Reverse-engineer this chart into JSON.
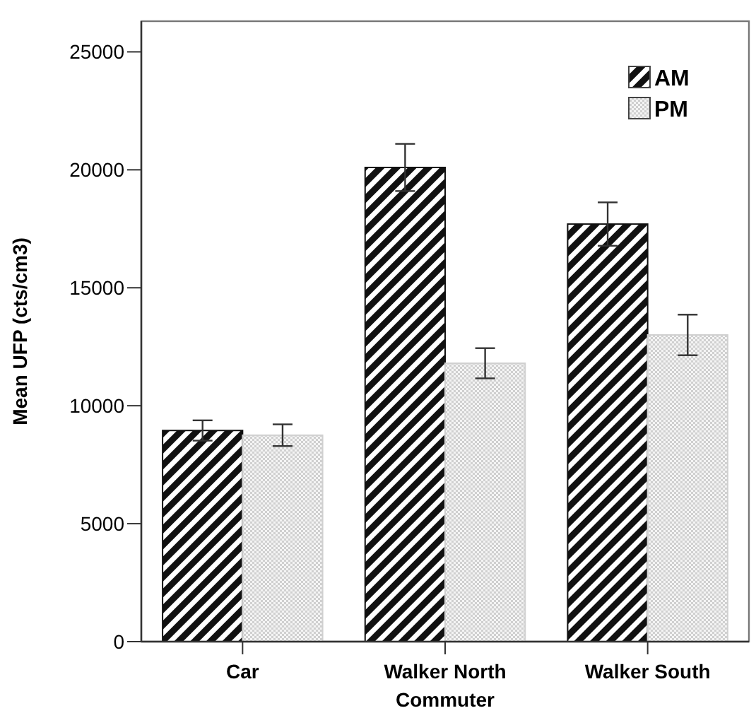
{
  "chart_data": {
    "type": "bar",
    "xlabel": "Commuter",
    "ylabel": "Mean UFP (cts/cm3)",
    "categories": [
      "Car",
      "Walker North",
      "Walker South"
    ],
    "series": [
      {
        "name": "AM",
        "color": "#111111",
        "values": [
          8950,
          20100,
          17700
        ],
        "errors": [
          430,
          1000,
          920
        ]
      },
      {
        "name": "PM",
        "color": "#d0d0d0",
        "values": [
          8750,
          11800,
          13000
        ],
        "errors": [
          460,
          640,
          860
        ]
      }
    ],
    "ylim": [
      0,
      26300
    ],
    "yticks": [
      0,
      5000,
      10000,
      15000,
      20000,
      25000
    ],
    "grid": false,
    "legend": "top right"
  }
}
